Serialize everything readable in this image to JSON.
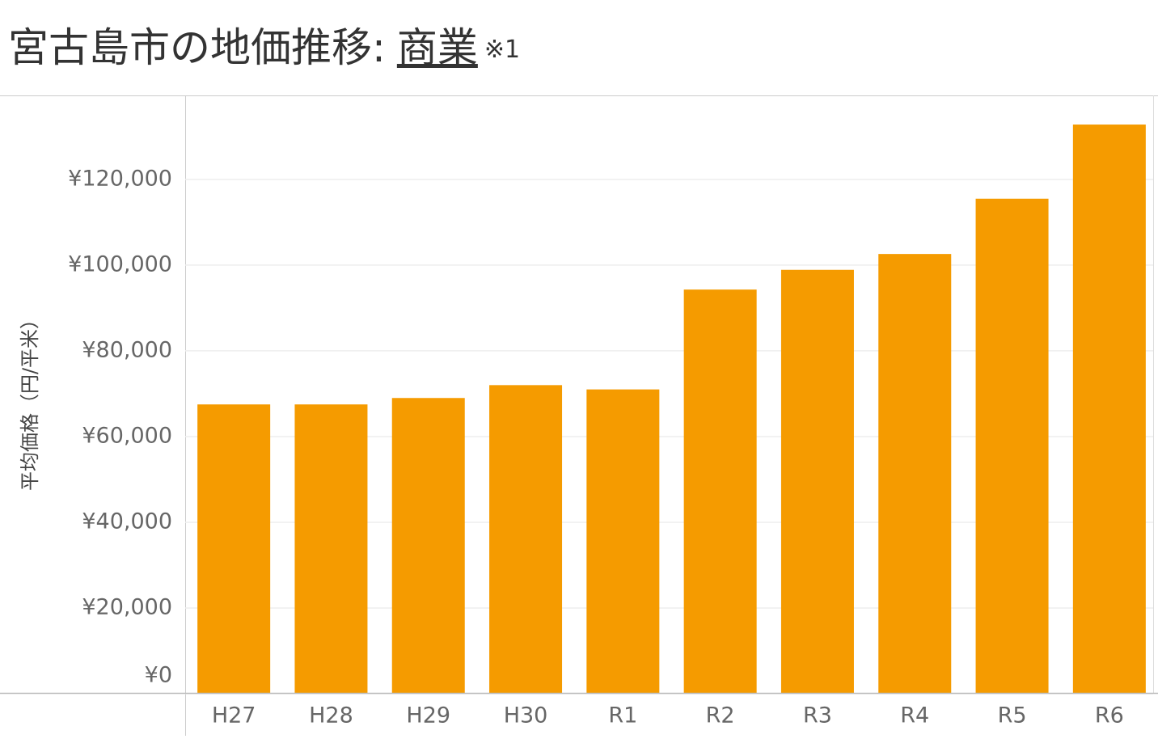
{
  "chart_data": {
    "type": "bar",
    "title": "宮古島市の地価推移:",
    "title_link": "商業",
    "title_note": "※1",
    "y_label": "平均価格（円/平米）",
    "categories": [
      "H27",
      "H28",
      "H29",
      "H30",
      "R1",
      "R2",
      "R3",
      "R4",
      "R5",
      "R6"
    ],
    "values": [
      67500,
      67500,
      69000,
      72000,
      71000,
      94300,
      98900,
      102600,
      115500,
      132800
    ],
    "color": "#f59b00",
    "ylim": [
      0,
      139600
    ],
    "yticks": [
      {
        "value": 0,
        "label": "¥0"
      },
      {
        "value": 20000,
        "label": "¥20,000"
      },
      {
        "value": 40000,
        "label": "¥40,000"
      },
      {
        "value": 60000,
        "label": "¥60,000"
      },
      {
        "value": 80000,
        "label": "¥80,000"
      },
      {
        "value": 100000,
        "label": "¥100,000"
      },
      {
        "value": 120000,
        "label": "¥120,000"
      }
    ],
    "grid": true
  }
}
